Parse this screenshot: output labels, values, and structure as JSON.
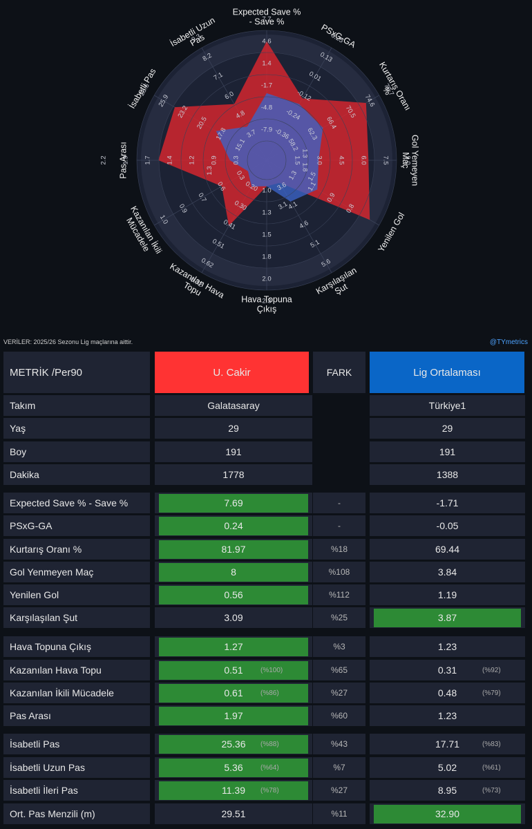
{
  "chart_data": {
    "type": "radar",
    "axes": [
      {
        "label": "Expected Save %\n- Save %",
        "ticks": [
          "-7.9",
          "-4.8",
          "-1.7",
          "1.4",
          "4.6",
          "7.7"
        ]
      },
      {
        "label": "PSxG-GA",
        "ticks": [
          "-0.36",
          "-0.24",
          "-0.12",
          "0.01",
          "0.13",
          "0.25"
        ]
      },
      {
        "label": "Kurtarış Oranı\n%",
        "ticks": [
          "58.2",
          "62.3",
          "66.4",
          "70.5",
          "74.6",
          "78.7"
        ]
      },
      {
        "label": "Gol Yemeyen\nMaç",
        "ticks": [
          "1.5",
          "3.0",
          "4.5",
          "6.0",
          "7.5",
          "9.0"
        ]
      },
      {
        "label": "Yenilen Gol",
        "ticks": [
          "1.3",
          "1.1",
          "0.9",
          "0.8"
        ]
      },
      {
        "label": "Karşılaşılan\nŞut",
        "ticks": [
          "3.6",
          "4.1",
          "4.6",
          "5.1",
          "5.6"
        ]
      },
      {
        "label": "Hava Topuna\nÇıkış",
        "ticks": [
          "1.0",
          "1.3",
          "1.5",
          "1.8",
          "2.0",
          "2.3"
        ]
      },
      {
        "label": "Kazanılan Hava\nTopu",
        "ticks": [
          "0.20",
          "0.30",
          "0.41",
          "0.51",
          "0.62",
          "0.72"
        ]
      },
      {
        "label": "Kazanılan İkili\nMücadele",
        "ticks": [
          "0.3",
          "0.6",
          "0.7",
          "0.9",
          "1.0"
        ]
      },
      {
        "label": "Pas Arası",
        "ticks": [
          "0.3",
          "0.9",
          "1.2",
          "1.4",
          "1.7",
          "1.9",
          "2.2"
        ]
      },
      {
        "label": "İsabetli Pas",
        "ticks": [
          "15.1",
          "17.8",
          "20.5",
          "23.2",
          "25.9",
          "28.6"
        ]
      },
      {
        "label": "İsabetli Uzun\nPas",
        "ticks": [
          "3.7",
          "4.8",
          "6.0",
          "7.1",
          "8.2",
          "9.3"
        ]
      }
    ],
    "extra_ticks": [
      {
        "axis": 3,
        "tick": "1.3"
      },
      {
        "axis": 5,
        "tick": "3.1"
      },
      {
        "axis": 9,
        "tick": "1.3"
      },
      {
        "axis": 3,
        "tick": "1.8"
      },
      {
        "axis": 4,
        "tick": "1.5"
      }
    ],
    "scale_max": 6,
    "series": [
      {
        "name": "U. Cakir",
        "color": "#d9262e",
        "values": [
          5.5,
          3.3,
          5.3,
          4.7,
          5.5,
          1.2,
          1.2,
          3.5,
          2.4,
          5.0,
          4.9,
          3.0
        ]
      },
      {
        "name": "Lig Ortalaması",
        "color": "#3b64c8",
        "values": [
          3.1,
          3.0,
          3.0,
          2.4,
          2.7,
          2.2,
          1.2,
          1.4,
          1.0,
          1.7,
          2.7,
          1.8
        ]
      }
    ]
  },
  "source_note": "VERİLER: 2025/26 Sezonu Lig maçlarına aittir.",
  "handle": "@TYmetrics",
  "table": {
    "headers": {
      "metric": "METRİK /Per90",
      "player": "U. Cakir",
      "diff": "FARK",
      "league": "Lig Ortalaması"
    },
    "colors": {
      "player_header": "#ff3333",
      "league_header": "#0a66c7",
      "highlight": "#2d8a35"
    },
    "rows": [
      {
        "metric": "Takım",
        "player": "Galatasaray",
        "diff": "",
        "league": "Türkiye1",
        "hl": "none"
      },
      {
        "metric": "Yaş",
        "player": "29",
        "diff": "",
        "league": "29",
        "hl": "none"
      },
      {
        "metric": "Boy",
        "player": "191",
        "diff": "",
        "league": "191",
        "hl": "none"
      },
      {
        "metric": "Dakika",
        "player": "1778",
        "diff": "",
        "league": "1388",
        "hl": "none"
      },
      {
        "metric": "Expected Save % - Save %",
        "player": "7.69",
        "diff": "-",
        "league": "-1.71",
        "hl": "player"
      },
      {
        "metric": "PSxG-GA",
        "player": "0.24",
        "diff": "-",
        "league": "-0.05",
        "hl": "player"
      },
      {
        "metric": "Kurtarış Oranı %",
        "player": "81.97",
        "diff": "%18",
        "league": "69.44",
        "hl": "player"
      },
      {
        "metric": "Gol Yenmeyen Maç",
        "player": "8",
        "diff": "%108",
        "league": "3.84",
        "hl": "player"
      },
      {
        "metric": "Yenilen Gol",
        "player": "0.56",
        "diff": "%112",
        "league": "1.19",
        "hl": "player"
      },
      {
        "metric": "Karşılaşılan Şut",
        "player": "3.09",
        "diff": "%25",
        "league": "3.87",
        "hl": "league"
      },
      {
        "metric": "Hava Topuna Çıkış",
        "player": "1.27",
        "diff": "%3",
        "league": "1.23",
        "hl": "player"
      },
      {
        "metric": "Kazanılan Hava Topu",
        "player": "0.51",
        "player_pct": "(%100)",
        "diff": "%65",
        "league": "0.31",
        "league_pct": "(%92)",
        "hl": "player"
      },
      {
        "metric": "Kazanılan İkili Mücadele",
        "player": "0.61",
        "player_pct": "(%86)",
        "diff": "%27",
        "league": "0.48",
        "league_pct": "(%79)",
        "hl": "player"
      },
      {
        "metric": "Pas Arası",
        "player": "1.97",
        "diff": "%60",
        "league": "1.23",
        "hl": "player"
      },
      {
        "metric": "İsabetli Pas",
        "player": "25.36",
        "player_pct": "(%88)",
        "diff": "%43",
        "league": "17.71",
        "league_pct": "(%83)",
        "hl": "player"
      },
      {
        "metric": "İsabetli Uzun Pas",
        "player": "5.36",
        "player_pct": "(%64)",
        "diff": "%7",
        "league": "5.02",
        "league_pct": "(%61)",
        "hl": "player"
      },
      {
        "metric": "İsabetli İleri Pas",
        "player": "11.39",
        "player_pct": "(%78)",
        "diff": "%27",
        "league": "8.95",
        "league_pct": "(%73)",
        "hl": "player"
      },
      {
        "metric": "Ort. Pas Menzili (m)",
        "player": "29.51",
        "diff": "%11",
        "league": "32.90",
        "hl": "league"
      }
    ]
  }
}
